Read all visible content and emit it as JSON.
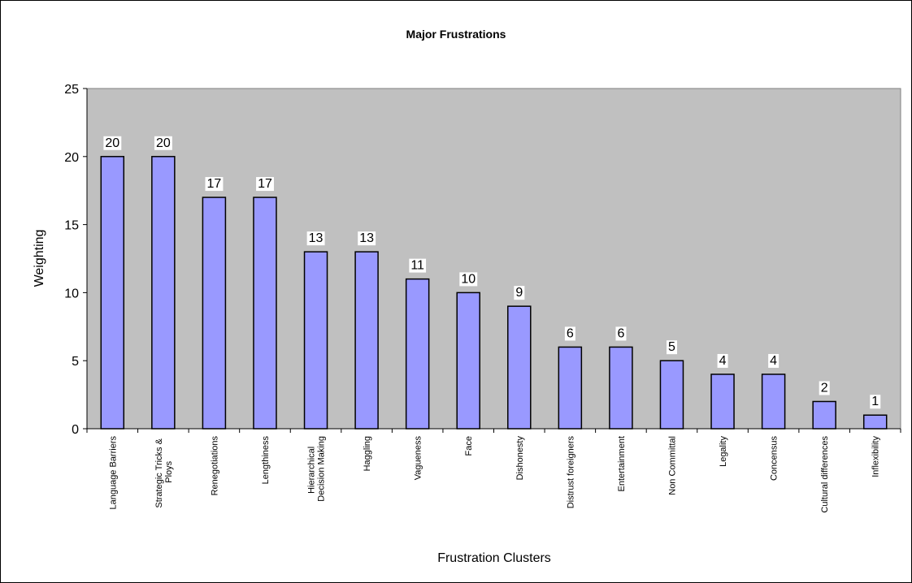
{
  "chart_data": {
    "type": "bar",
    "title": "Major Frustrations",
    "x_label": "Frustration Clusters",
    "y_label": "Weighting",
    "categories": [
      "Language Barriers",
      "Strategic Tricks & Ploys",
      "Renegotiations",
      "Lengthiness",
      "Hierarchical Decision Making",
      "Haggling",
      "Vagueness",
      "Face",
      "Dishonesty",
      "Distrust foreigners",
      "Entertainment",
      "Non Committal",
      "Legality",
      "Concensus",
      "Cultural differences",
      "Inflexibility"
    ],
    "values": [
      20,
      20,
      17,
      17,
      13,
      13,
      11,
      10,
      9,
      6,
      6,
      5,
      4,
      4,
      2,
      1
    ],
    "color": "#9999ff",
    "ylim": [
      0,
      25
    ],
    "yticks": [
      0,
      5,
      10,
      15,
      20,
      25
    ],
    "grid": false
  }
}
